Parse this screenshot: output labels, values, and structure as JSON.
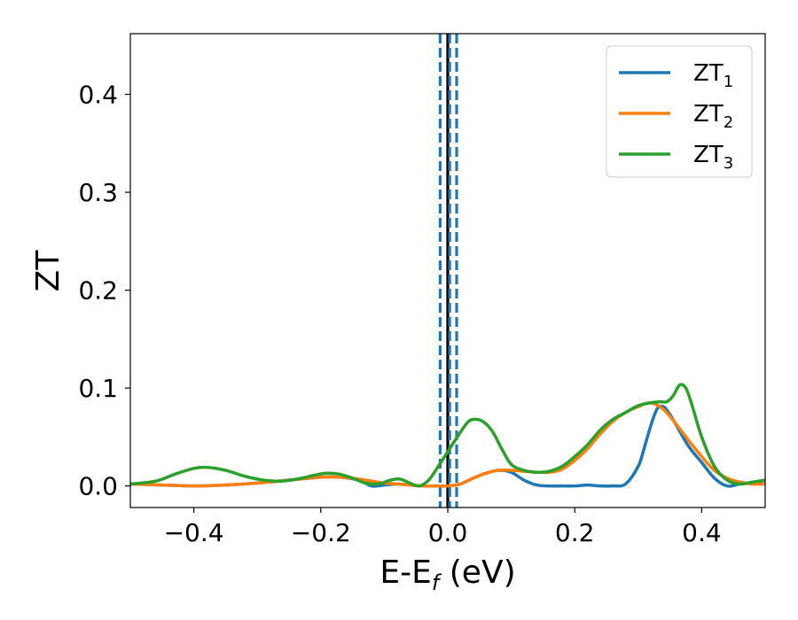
{
  "chart_data": {
    "type": "line",
    "xlabel_main": "E-E",
    "xlabel_sub": "f",
    "xlabel_unit": " (eV)",
    "ylabel": "ZT",
    "xlim": [
      -0.5,
      0.5
    ],
    "ylim": [
      -0.022,
      0.462
    ],
    "xticks": [
      -0.4,
      -0.2,
      0.0,
      0.2,
      0.4
    ],
    "xtick_labels": [
      "−0.4",
      "−0.2",
      "0.0",
      "0.2",
      "0.4"
    ],
    "yticks": [
      0.0,
      0.1,
      0.2,
      0.3,
      0.4
    ],
    "ytick_labels": [
      "0.0",
      "0.1",
      "0.2",
      "0.3",
      "0.4"
    ],
    "legend_position": "top-right",
    "vlines": [
      {
        "x": 0.0,
        "style": "solid",
        "color": "#000000"
      },
      {
        "x": -0.012,
        "style": "dashed",
        "color": "#1f77b4"
      },
      {
        "x": 0.003,
        "style": "dashed",
        "color": "#1f77b4"
      },
      {
        "x": 0.014,
        "style": "dashed",
        "color": "#1f77b4"
      }
    ],
    "series": [
      {
        "legend_base": "ZT",
        "legend_sub": "1",
        "color": "#1f77b4",
        "x": [
          -0.5,
          -0.45,
          -0.4,
          -0.35,
          -0.3,
          -0.25,
          -0.2,
          -0.17,
          -0.14,
          -0.12,
          -0.1,
          -0.08,
          -0.06,
          -0.04,
          -0.02,
          0.0,
          0.02,
          0.04,
          0.06,
          0.08,
          0.1,
          0.12,
          0.14,
          0.16,
          0.18,
          0.2,
          0.22,
          0.24,
          0.26,
          0.28,
          0.3,
          0.31,
          0.32,
          0.33,
          0.34,
          0.35,
          0.36,
          0.38,
          0.4,
          0.42,
          0.44,
          0.46,
          0.48,
          0.5
        ],
        "y": [
          0.002,
          0.001,
          0.0,
          0.001,
          0.003,
          0.006,
          0.009,
          0.009,
          0.006,
          0.0,
          0.001,
          0.002,
          0.001,
          0.0,
          0.0,
          0.0,
          0.002,
          0.008,
          0.013,
          0.016,
          0.014,
          0.006,
          0.001,
          0.0,
          0.0,
          0.0,
          0.001,
          0.0,
          0.0,
          0.002,
          0.02,
          0.04,
          0.062,
          0.079,
          0.081,
          0.073,
          0.062,
          0.04,
          0.024,
          0.008,
          0.0,
          0.002,
          0.003,
          0.002
        ]
      },
      {
        "legend_base": "ZT",
        "legend_sub": "2",
        "color": "#ff7f0e",
        "x": [
          -0.5,
          -0.45,
          -0.4,
          -0.35,
          -0.3,
          -0.25,
          -0.2,
          -0.17,
          -0.14,
          -0.12,
          -0.1,
          -0.08,
          -0.06,
          -0.04,
          -0.02,
          0.0,
          0.02,
          0.04,
          0.06,
          0.08,
          0.1,
          0.12,
          0.14,
          0.16,
          0.18,
          0.2,
          0.22,
          0.24,
          0.26,
          0.28,
          0.3,
          0.32,
          0.34,
          0.36,
          0.38,
          0.4,
          0.42,
          0.44,
          0.46,
          0.48,
          0.5
        ],
        "y": [
          0.002,
          0.001,
          0.0,
          0.001,
          0.003,
          0.006,
          0.009,
          0.009,
          0.007,
          0.005,
          0.003,
          0.002,
          0.001,
          0.0,
          0.0,
          0.0,
          0.002,
          0.008,
          0.013,
          0.016,
          0.016,
          0.015,
          0.014,
          0.014,
          0.017,
          0.026,
          0.038,
          0.053,
          0.066,
          0.075,
          0.081,
          0.085,
          0.078,
          0.063,
          0.046,
          0.03,
          0.016,
          0.008,
          0.004,
          0.002,
          0.002
        ]
      },
      {
        "legend_base": "ZT",
        "legend_sub": "3",
        "color": "#2ca02c",
        "x": [
          -0.5,
          -0.46,
          -0.43,
          -0.4,
          -0.38,
          -0.35,
          -0.32,
          -0.29,
          -0.26,
          -0.23,
          -0.21,
          -0.19,
          -0.17,
          -0.15,
          -0.13,
          -0.11,
          -0.09,
          -0.075,
          -0.06,
          -0.045,
          -0.03,
          -0.015,
          0.0,
          0.015,
          0.03,
          0.04,
          0.055,
          0.07,
          0.085,
          0.1,
          0.12,
          0.14,
          0.16,
          0.18,
          0.2,
          0.22,
          0.24,
          0.26,
          0.28,
          0.3,
          0.32,
          0.335,
          0.345,
          0.355,
          0.365,
          0.375,
          0.385,
          0.4,
          0.42,
          0.44,
          0.46,
          0.48,
          0.5
        ],
        "y": [
          0.002,
          0.005,
          0.012,
          0.018,
          0.019,
          0.016,
          0.01,
          0.006,
          0.005,
          0.008,
          0.011,
          0.013,
          0.012,
          0.008,
          0.003,
          0.002,
          0.006,
          0.007,
          0.003,
          0.0,
          0.006,
          0.02,
          0.035,
          0.05,
          0.064,
          0.068,
          0.066,
          0.056,
          0.038,
          0.022,
          0.016,
          0.014,
          0.015,
          0.02,
          0.03,
          0.042,
          0.057,
          0.068,
          0.075,
          0.082,
          0.085,
          0.086,
          0.086,
          0.092,
          0.103,
          0.1,
          0.082,
          0.05,
          0.02,
          0.006,
          0.002,
          0.004,
          0.006
        ]
      }
    ]
  }
}
